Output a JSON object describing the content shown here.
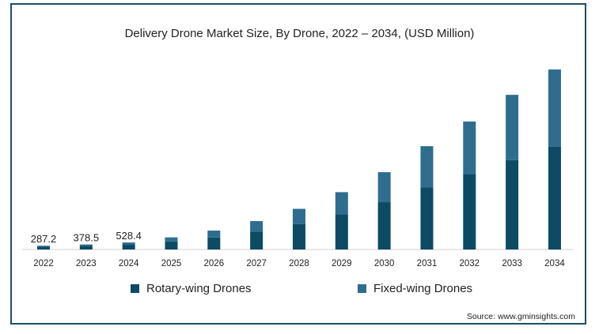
{
  "chart_data": {
    "type": "bar",
    "stacked": true,
    "title": "Delivery Drone Market Size, By Drone, 2022 – 2034, (USD Million)",
    "categories": [
      "2022",
      "2023",
      "2024",
      "2025",
      "2026",
      "2027",
      "2028",
      "2029",
      "2030",
      "2031",
      "2032",
      "2033",
      "2034"
    ],
    "series": [
      {
        "name": "Rotary-wing Drones",
        "color": "#0d4a63",
        "values": [
          200,
          270,
          380,
          600,
          900,
          1350,
          1900,
          2650,
          3550,
          4650,
          5650,
          6700,
          7700
        ]
      },
      {
        "name": "Fixed-wing Drones",
        "color": "#2f6d8f",
        "values": [
          87.2,
          108.5,
          148.4,
          310,
          520,
          780,
          1150,
          1650,
          2250,
          3100,
          3950,
          4900,
          5800
        ]
      }
    ],
    "data_labels": [
      "287.2",
      "378.5",
      "528.4",
      "",
      "",
      "",
      "",
      "",
      "",
      "",
      "",
      "",
      ""
    ],
    "ylim": [
      0,
      13500
    ],
    "grid": false,
    "legend_position": "bottom"
  },
  "source": "Source: www.gminsights.com"
}
